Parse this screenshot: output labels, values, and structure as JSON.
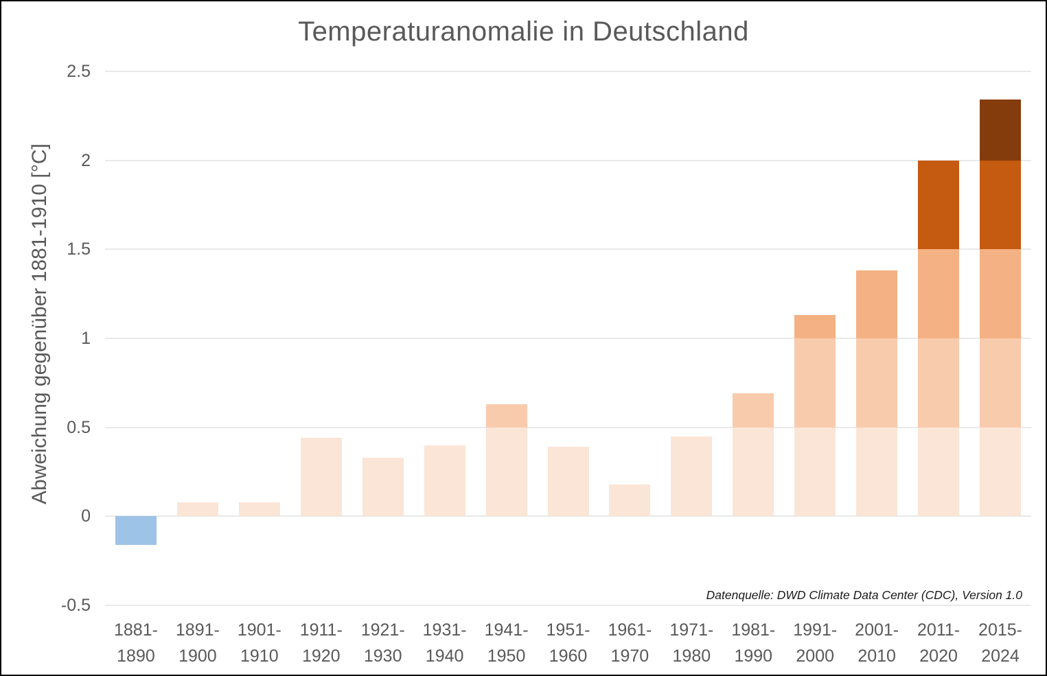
{
  "title": "Temperaturanomalie in Deutschland",
  "source_note": "Datenquelle: DWD Climate Data Center (CDC), Version 1.0",
  "colors": {
    "title_text": "#595959",
    "axis_text": "#595959",
    "gridline": "#e9e9e9",
    "negative_bar": "#9DC3E6",
    "band_0_to_05": "#FBE5D6",
    "band_05_to_1": "#F8CBAD",
    "band_1_to_15": "#F4B183",
    "band_15_to_2": "#C55A11",
    "band_2_to_25": "#843C0C"
  },
  "chart_data": {
    "type": "bar",
    "title": "Temperaturanomalie in Deutschland",
    "xlabel": "",
    "ylabel": "Abweichung gegenüber 1881-1910 [°C]",
    "ylim": [
      -0.5,
      2.5
    ],
    "grid": true,
    "legend": false,
    "yticks": [
      2.5,
      2,
      1.5,
      1,
      0.5,
      0,
      -0.5
    ],
    "ytick_labels": [
      "2.5",
      "2",
      "1.5",
      "1",
      "0.5",
      "0",
      "-0.5"
    ],
    "categories": [
      "1881-1890",
      "1891-1900",
      "1901-1910",
      "1911-1920",
      "1921-1930",
      "1931-1940",
      "1941-1950",
      "1951-1960",
      "1961-1970",
      "1971-1980",
      "1981-1990",
      "1991-2000",
      "2001-2010",
      "2011-2020",
      "2015-2024"
    ],
    "category_lines": [
      [
        "1881-",
        "1890"
      ],
      [
        "1891-",
        "1900"
      ],
      [
        "1901-",
        "1910"
      ],
      [
        "1911-",
        "1920"
      ],
      [
        "1921-",
        "1930"
      ],
      [
        "1931-",
        "1940"
      ],
      [
        "1941-",
        "1950"
      ],
      [
        "1951-",
        "1960"
      ],
      [
        "1961-",
        "1970"
      ],
      [
        "1971-",
        "1980"
      ],
      [
        "1981-",
        "1990"
      ],
      [
        "1991-",
        "2000"
      ],
      [
        "2001-",
        "2010"
      ],
      [
        "2011-",
        "2020"
      ],
      [
        "2015-",
        "2024"
      ]
    ],
    "values": [
      -0.16,
      0.08,
      0.08,
      0.44,
      0.33,
      0.4,
      0.63,
      0.39,
      0.18,
      0.45,
      0.69,
      1.13,
      1.38,
      2.0,
      2.34
    ],
    "band_step": 0.5,
    "band_colors": [
      "#FBE5D6",
      "#F8CBAD",
      "#F4B183",
      "#C55A11",
      "#843C0C"
    ],
    "negative_color": "#9DC3E6",
    "source": "Datenquelle: DWD Climate Data Center (CDC), Version 1.0"
  }
}
